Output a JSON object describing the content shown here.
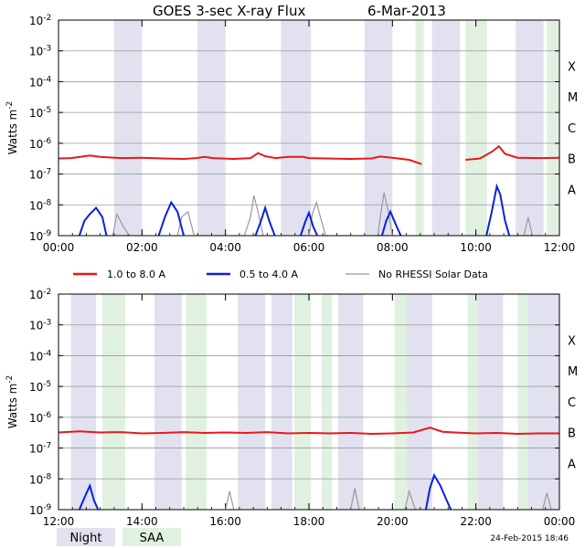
{
  "chart_data": {
    "type": "line",
    "title": "GOES 3-sec X-ray Flux",
    "date": "6-Mar-2013",
    "ylabel": "Watts m",
    "ylabel_sup": "-2",
    "yscale": "log",
    "ylim": [
      1e-09,
      0.01
    ],
    "y_ticks": [
      {
        "base": "10",
        "exp": "-2",
        "value": 0.01
      },
      {
        "base": "10",
        "exp": "-3",
        "value": 0.001
      },
      {
        "base": "10",
        "exp": "-4",
        "value": 0.0001
      },
      {
        "base": "10",
        "exp": "-5",
        "value": 1e-05
      },
      {
        "base": "10",
        "exp": "-6",
        "value": 1e-06
      },
      {
        "base": "10",
        "exp": "-7",
        "value": 1e-07
      },
      {
        "base": "10",
        "exp": "-8",
        "value": 1e-08
      },
      {
        "base": "10",
        "exp": "-9",
        "value": 1e-09
      }
    ],
    "flare_classes": [
      {
        "label": "X",
        "value": 0.00032
      },
      {
        "label": "M",
        "value": 3.2e-05
      },
      {
        "label": "C",
        "value": 3.2e-06
      },
      {
        "label": "B",
        "value": 3.2e-07
      },
      {
        "label": "A",
        "value": 3.2e-08
      }
    ],
    "grid": true,
    "colors": {
      "long": "#e8181c",
      "short": "#0b1fe0",
      "norhessi": "#9a9a9a",
      "night": "#e1e1ef",
      "saa": "#e1f1e1"
    },
    "legend": [
      {
        "label": "1.0 to 8.0 A",
        "color": "#e8181c"
      },
      {
        "label": "0.5 to 4.0 A",
        "color": "#0b1fe0"
      },
      {
        "label": "No RHESSI Solar Data",
        "color": "#9a9a9a"
      }
    ],
    "shading_legend": [
      {
        "label": "Night",
        "color": "#e1e1ef"
      },
      {
        "label": "SAA",
        "color": "#e1f1e1"
      }
    ],
    "footer": "24-Feb-2015 18:46",
    "panels": [
      {
        "xlim": [
          0,
          12
        ],
        "x_ticks": [
          "00:00",
          "02:00",
          "04:00",
          "06:00",
          "08:00",
          "10:00",
          "12:00"
        ],
        "night": [
          [
            1.33,
            2.0
          ],
          [
            3.33,
            4.0
          ],
          [
            5.33,
            6.05
          ],
          [
            7.33,
            8.0
          ],
          [
            8.95,
            9.62
          ],
          [
            10.95,
            11.62
          ]
        ],
        "saa": [
          [
            8.55,
            8.75
          ],
          [
            9.75,
            10.27
          ],
          [
            11.7,
            12.0
          ]
        ],
        "long_flux": [
          {
            "name": "1.0 to 8.0 A",
            "points": [
              [
                0,
                3.2e-07
              ],
              [
                0.3,
                3.3e-07
              ],
              [
                0.75,
                4e-07
              ],
              [
                1.0,
                3.6e-07
              ],
              [
                1.5,
                3.3e-07
              ],
              [
                2.0,
                3.4e-07
              ],
              [
                2.5,
                3.2e-07
              ],
              [
                3.0,
                3.1e-07
              ],
              [
                3.3,
                3.3e-07
              ],
              [
                3.5,
                3.6e-07
              ],
              [
                3.7,
                3.3e-07
              ],
              [
                4.2,
                3.1e-07
              ],
              [
                4.6,
                3.3e-07
              ],
              [
                4.78,
                4.8e-07
              ],
              [
                4.95,
                3.8e-07
              ],
              [
                5.2,
                3.3e-07
              ],
              [
                5.5,
                3.6e-07
              ],
              [
                5.85,
                3.6e-07
              ],
              [
                6.0,
                3.3e-07
              ],
              [
                7.0,
                3.1e-07
              ],
              [
                7.5,
                3.2e-07
              ],
              [
                7.7,
                3.7e-07
              ],
              [
                8.0,
                3.4e-07
              ],
              [
                8.4,
                2.9e-07
              ],
              [
                8.7,
                2.1e-07
              ]
            ]
          },
          {
            "name": "1.0 to 8.0 A",
            "points": [
              [
                9.75,
                2.9e-07
              ],
              [
                10.1,
                3.2e-07
              ],
              [
                10.4,
                5.5e-07
              ],
              [
                10.55,
                8e-07
              ],
              [
                10.7,
                4.5e-07
              ],
              [
                11.0,
                3.4e-07
              ],
              [
                11.5,
                3.3e-07
              ],
              [
                12.0,
                3.4e-07
              ]
            ]
          }
        ],
        "short_flux": [
          {
            "points": [
              [
                0.5,
                1e-09
              ],
              [
                0.62,
                3e-09
              ],
              [
                0.75,
                5e-09
              ],
              [
                0.9,
                8e-09
              ],
              [
                1.05,
                4e-09
              ],
              [
                1.15,
                1e-09
              ]
            ]
          },
          {
            "points": [
              [
                2.4,
                1e-09
              ],
              [
                2.55,
                4e-09
              ],
              [
                2.7,
                1.2e-08
              ],
              [
                2.85,
                6e-09
              ],
              [
                3.0,
                1e-09
              ]
            ]
          },
          {
            "points": [
              [
                4.72,
                1e-09
              ],
              [
                4.85,
                3e-09
              ],
              [
                4.95,
                8e-09
              ],
              [
                5.05,
                3e-09
              ],
              [
                5.18,
                1e-09
              ]
            ]
          },
          {
            "points": [
              [
                5.8,
                1e-09
              ],
              [
                5.92,
                3e-09
              ],
              [
                6.0,
                5.5e-09
              ],
              [
                6.1,
                2e-09
              ],
              [
                6.2,
                1e-09
              ]
            ]
          },
          {
            "points": [
              [
                7.75,
                1e-09
              ],
              [
                7.85,
                3e-09
              ],
              [
                7.95,
                6e-09
              ],
              [
                8.1,
                2e-09
              ],
              [
                8.2,
                1e-09
              ]
            ]
          },
          {
            "points": [
              [
                10.25,
                1e-09
              ],
              [
                10.38,
                6e-09
              ],
              [
                10.5,
                4e-08
              ],
              [
                10.58,
                2.2e-08
              ],
              [
                10.7,
                3e-09
              ],
              [
                10.8,
                1e-09
              ]
            ]
          }
        ],
        "norhessi_flux": [
          {
            "points": [
              [
                1.3,
                1e-09
              ],
              [
                1.4,
                5e-09
              ],
              [
                1.55,
                2e-09
              ],
              [
                1.7,
                1e-09
              ]
            ]
          },
          {
            "points": [
              [
                2.85,
                1e-09
              ],
              [
                2.95,
                4e-09
              ],
              [
                3.1,
                6e-09
              ],
              [
                3.25,
                1e-09
              ]
            ]
          },
          {
            "points": [
              [
                4.45,
                1e-09
              ],
              [
                4.6,
                4e-09
              ],
              [
                4.68,
                2e-08
              ],
              [
                4.78,
                6e-09
              ],
              [
                4.9,
                1e-09
              ]
            ]
          },
          {
            "points": [
              [
                6.0,
                1e-09
              ],
              [
                6.08,
                5e-09
              ],
              [
                6.18,
                1.2e-08
              ],
              [
                6.3,
                3e-09
              ],
              [
                6.4,
                1e-09
              ]
            ]
          },
          {
            "points": [
              [
                7.65,
                1e-09
              ],
              [
                7.72,
                5e-09
              ],
              [
                7.8,
                2.5e-08
              ],
              [
                7.9,
                6e-09
              ],
              [
                8.0,
                1e-09
              ]
            ]
          },
          {
            "points": [
              [
                11.15,
                1e-09
              ],
              [
                11.25,
                4e-09
              ],
              [
                11.35,
                1e-09
              ]
            ]
          }
        ]
      },
      {
        "xlim": [
          12,
          24
        ],
        "x_ticks": [
          "12:00",
          "14:00",
          "16:00",
          "18:00",
          "20:00",
          "22:00",
          "00:00"
        ],
        "night": [
          [
            12.3,
            12.9
          ],
          [
            14.3,
            14.95
          ],
          [
            16.3,
            16.95
          ],
          [
            17.1,
            17.6
          ],
          [
            18.7,
            19.3
          ],
          [
            20.33,
            20.95
          ],
          [
            22.05,
            22.65
          ],
          [
            23.25,
            24.0
          ]
        ],
        "saa": [
          [
            13.05,
            13.6
          ],
          [
            15.05,
            15.55
          ],
          [
            17.65,
            18.05
          ],
          [
            18.3,
            18.55
          ],
          [
            20.05,
            20.35
          ],
          [
            21.8,
            22.05
          ],
          [
            23.0,
            23.25
          ]
        ],
        "long_flux": [
          {
            "name": "1.0 to 8.0 A",
            "points": [
              [
                12,
                3.2e-07
              ],
              [
                12.5,
                3.5e-07
              ],
              [
                13.0,
                3.2e-07
              ],
              [
                13.5,
                3.3e-07
              ],
              [
                14.0,
                3e-07
              ],
              [
                14.5,
                3.1e-07
              ],
              [
                15.0,
                3.3e-07
              ],
              [
                15.5,
                3.1e-07
              ],
              [
                16.0,
                3.2e-07
              ],
              [
                16.5,
                3.1e-07
              ],
              [
                17.0,
                3.3e-07
              ],
              [
                17.5,
                3e-07
              ],
              [
                18.0,
                3.1e-07
              ],
              [
                18.5,
                3e-07
              ],
              [
                19.0,
                3.1e-07
              ],
              [
                19.5,
                2.9e-07
              ],
              [
                20.0,
                3e-07
              ],
              [
                20.5,
                3.2e-07
              ],
              [
                20.9,
                4.6e-07
              ],
              [
                21.2,
                3.4e-07
              ],
              [
                21.5,
                3.2e-07
              ],
              [
                22.0,
                3e-07
              ],
              [
                22.5,
                3.1e-07
              ],
              [
                23.0,
                2.9e-07
              ],
              [
                23.5,
                3e-07
              ],
              [
                24.0,
                3e-07
              ]
            ]
          }
        ],
        "short_flux": [
          {
            "points": [
              [
                12.5,
                1e-09
              ],
              [
                12.65,
                3e-09
              ],
              [
                12.75,
                6e-09
              ],
              [
                12.85,
                2e-09
              ],
              [
                12.95,
                1e-09
              ]
            ]
          },
          {
            "points": [
              [
                20.8,
                1e-09
              ],
              [
                20.9,
                5e-09
              ],
              [
                21.0,
                1.3e-08
              ],
              [
                21.15,
                6e-09
              ],
              [
                21.3,
                2e-09
              ],
              [
                21.4,
                1e-09
              ]
            ]
          }
        ],
        "norhessi_flux": [
          {
            "points": [
              [
                16.0,
                1e-09
              ],
              [
                16.1,
                4e-09
              ],
              [
                16.2,
                1e-09
              ]
            ]
          },
          {
            "points": [
              [
                19.0,
                1e-09
              ],
              [
                19.1,
                5e-09
              ],
              [
                19.2,
                1e-09
              ]
            ]
          },
          {
            "points": [
              [
                20.3,
                1e-09
              ],
              [
                20.4,
                4e-09
              ],
              [
                20.55,
                1e-09
              ]
            ]
          },
          {
            "points": [
              [
                23.6,
                1e-09
              ],
              [
                23.7,
                3.5e-09
              ],
              [
                23.8,
                1e-09
              ]
            ]
          }
        ]
      }
    ]
  }
}
